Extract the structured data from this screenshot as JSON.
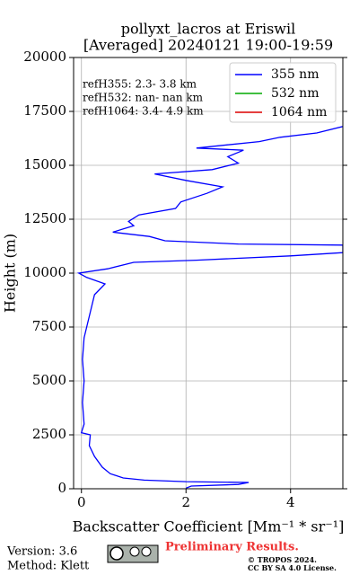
{
  "chart_data": {
    "type": "profile",
    "title": "pollyxt_lacros at Eriswil",
    "subtitle": "[Averaged] 20240121 19:00-19:59",
    "x_label": "Backscatter Coefficient [Mm⁻¹ * sr⁻¹]",
    "y_label": "Height (m)",
    "annotations": [
      "refH355:  2.3- 3.8 km",
      "refH532:  nan- nan km",
      "refH1064:  3.4- 4.9 km"
    ],
    "heights": [
      30,
      125,
      200,
      290,
      330,
      400,
      500,
      700,
      1000,
      1500,
      2000,
      2500,
      2600,
      3000,
      4000,
      5000,
      6000,
      7000,
      7500,
      8000,
      8500,
      9000,
      9500,
      9800,
      10000,
      10200,
      10500,
      10600,
      10800,
      10950,
      11300,
      11350,
      11500,
      11700,
      11900,
      12200,
      12400,
      12700,
      13000,
      13300,
      13700,
      14000,
      14300,
      14600,
      14800,
      15100,
      15400,
      15700,
      15800,
      16100,
      16300,
      16500,
      16800
    ],
    "series": [
      {
        "name": "355 nm",
        "color": "#0000ff",
        "values": [
          2.0,
          2.1,
          3.0,
          3.2,
          2.0,
          1.2,
          0.8,
          0.55,
          0.4,
          0.25,
          0.15,
          0.17,
          0.0,
          0.05,
          0.02,
          0.05,
          0.02,
          0.05,
          0.1,
          0.15,
          0.2,
          0.25,
          0.45,
          0.1,
          -0.05,
          0.5,
          1.0,
          2.2,
          4.0,
          5.0,
          5.0,
          3.0,
          1.6,
          1.3,
          0.6,
          1.0,
          0.9,
          1.1,
          1.8,
          1.9,
          2.4,
          2.7,
          2.0,
          1.4,
          2.5,
          3.0,
          2.8,
          3.1,
          2.2,
          3.4,
          3.8,
          4.5,
          5.0
        ]
      },
      {
        "name": "532 nm",
        "color": "#00aa00",
        "values": [
          null,
          null,
          null,
          null,
          null,
          null,
          null,
          null,
          null,
          null,
          null,
          null,
          null,
          null,
          null,
          null,
          null,
          null,
          null,
          null,
          null,
          null,
          null,
          null,
          null,
          null,
          null,
          null,
          null,
          null,
          null,
          null,
          null,
          null,
          null,
          null,
          null,
          null,
          null,
          null,
          null,
          null,
          null,
          null,
          null,
          null,
          null,
          null,
          null,
          null,
          null,
          null,
          null
        ]
      },
      {
        "name": "1064 nm",
        "color": "#dd0000",
        "values": [
          null,
          null,
          null,
          null,
          null,
          null,
          null,
          null,
          null,
          null,
          null,
          null,
          null,
          null,
          null,
          null,
          null,
          null,
          null,
          null,
          null,
          null,
          null,
          null,
          null,
          null,
          null,
          null,
          null,
          null,
          null,
          null,
          null,
          null,
          null,
          null,
          null,
          null,
          null,
          null,
          null,
          null,
          null,
          null,
          null,
          null,
          null,
          null,
          null,
          null,
          null,
          null,
          null
        ]
      }
    ],
    "xlim": [
      -0.15,
      5
    ],
    "xticks": [
      0,
      2,
      4
    ],
    "ylim": [
      0,
      20000
    ],
    "yticks": [
      0,
      2500,
      5000,
      7500,
      10000,
      12500,
      15000,
      17500,
      20000
    ],
    "grid": true,
    "legend": "upper right"
  },
  "footer": {
    "version": "Version: 3.6",
    "method": "Method: Klett",
    "notice": "Preliminary Results.",
    "copyright": "© TROPOS 2024.",
    "license": "CC BY SA 4.0 License."
  }
}
